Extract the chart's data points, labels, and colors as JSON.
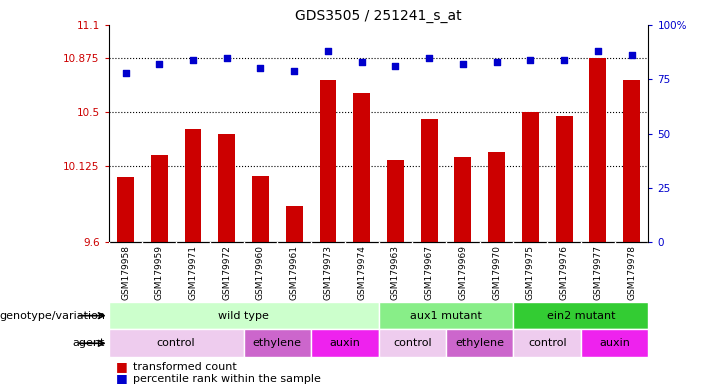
{
  "title": "GDS3505 / 251241_s_at",
  "samples": [
    "GSM179958",
    "GSM179959",
    "GSM179971",
    "GSM179972",
    "GSM179960",
    "GSM179961",
    "GSM179973",
    "GSM179974",
    "GSM179963",
    "GSM179967",
    "GSM179969",
    "GSM179970",
    "GSM179975",
    "GSM179976",
    "GSM179977",
    "GSM179978"
  ],
  "bar_values": [
    10.05,
    10.2,
    10.38,
    10.35,
    10.06,
    9.85,
    10.72,
    10.63,
    10.17,
    10.45,
    10.19,
    10.22,
    10.5,
    10.47,
    10.87,
    10.72
  ],
  "dot_values": [
    78,
    82,
    84,
    85,
    80,
    79,
    88,
    83,
    81,
    85,
    82,
    83,
    84,
    84,
    88,
    86
  ],
  "ylim_left": [
    9.6,
    11.1
  ],
  "yticks_left": [
    9.6,
    10.125,
    10.5,
    10.875,
    11.1
  ],
  "ytick_labels_left": [
    "9.6",
    "10.125",
    "10.5",
    "10.875",
    "11.1"
  ],
  "ylim_right": [
    0,
    100
  ],
  "yticks_right": [
    0,
    25,
    50,
    75,
    100
  ],
  "ytick_labels_right": [
    "0",
    "25",
    "50",
    "75",
    "100%"
  ],
  "bar_color": "#cc0000",
  "dot_color": "#0000cc",
  "hline_values": [
    10.125,
    10.5,
    10.875
  ],
  "genotype_groups": [
    {
      "label": "wild type",
      "start": 0,
      "end": 8,
      "color": "#ccffcc"
    },
    {
      "label": "aux1 mutant",
      "start": 8,
      "end": 12,
      "color": "#88ee88"
    },
    {
      "label": "ein2 mutant",
      "start": 12,
      "end": 16,
      "color": "#33cc33"
    }
  ],
  "agent_groups": [
    {
      "label": "control",
      "start": 0,
      "end": 4,
      "color": "#eeccee"
    },
    {
      "label": "ethylene",
      "start": 4,
      "end": 6,
      "color": "#cc66cc"
    },
    {
      "label": "auxin",
      "start": 6,
      "end": 8,
      "color": "#ee22ee"
    },
    {
      "label": "control",
      "start": 8,
      "end": 10,
      "color": "#eeccee"
    },
    {
      "label": "ethylene",
      "start": 10,
      "end": 12,
      "color": "#cc66cc"
    },
    {
      "label": "control",
      "start": 12,
      "end": 14,
      "color": "#eeccee"
    },
    {
      "label": "auxin",
      "start": 14,
      "end": 16,
      "color": "#ee22ee"
    }
  ],
  "legend_bar_label": "transformed count",
  "legend_dot_label": "percentile rank within the sample",
  "left_label_geno": "genotype/variation",
  "left_label_agent": "agent",
  "tick_color_left": "#cc0000",
  "tick_color_right": "#0000cc",
  "label_area_color": "#dddddd",
  "n_samples": 16
}
